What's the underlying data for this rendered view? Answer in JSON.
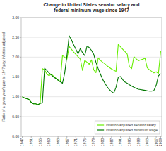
{
  "chart_data": {
    "type": "line",
    "title": "Change in United States senator salary and\nfederal minimum wage since 1947",
    "y_label": "Ratio of a given year's pay to 1947 pay, inflation-adjusted",
    "x": [
      1947,
      1948,
      1949,
      1950,
      1951,
      1952,
      1953,
      1954,
      1955,
      1956,
      1957,
      1958,
      1959,
      1960,
      1961,
      1962,
      1963,
      1964,
      1965,
      1966,
      1967,
      1968,
      1969,
      1970,
      1971,
      1972,
      1973,
      1974,
      1975,
      1976,
      1977,
      1978,
      1979,
      1980,
      1981,
      1982,
      1983,
      1984,
      1985,
      1986,
      1987,
      1988,
      1989,
      1990,
      1991,
      1992,
      1993,
      1994,
      1995,
      1996,
      1997,
      1998,
      1999,
      2000,
      2001,
      2002,
      2003,
      2004,
      2005,
      2006,
      2007,
      2008,
      2009
    ],
    "series": [
      {
        "name": "inflation-adjusted senator salary",
        "color": "#66ee00",
        "values": [
          1.0,
          0.97,
          0.95,
          0.93,
          0.86,
          0.82,
          0.82,
          0.8,
          0.83,
          1.71,
          1.68,
          1.57,
          1.53,
          1.57,
          1.52,
          1.47,
          1.42,
          1.38,
          2.04,
          2.0,
          1.95,
          2.27,
          2.2,
          2.13,
          2.07,
          2.01,
          1.95,
          1.66,
          1.92,
          1.87,
          1.82,
          1.93,
          1.68,
          1.61,
          1.98,
          1.92,
          1.87,
          1.83,
          1.78,
          1.74,
          1.7,
          1.67,
          1.64,
          2.32,
          2.26,
          2.2,
          2.14,
          2.08,
          1.76,
          1.71,
          2.01,
          1.96,
          1.91,
          1.93,
          1.95,
          1.97,
          1.73,
          1.68,
          1.64,
          1.6,
          1.63,
          1.59,
          2.15
        ]
      },
      {
        "name": "inflation-adjusted minimum wage",
        "color": "#007700",
        "values": [
          1.0,
          0.97,
          0.95,
          0.93,
          0.86,
          0.82,
          0.82,
          0.8,
          0.83,
          0.85,
          1.72,
          1.66,
          1.6,
          1.55,
          1.5,
          1.46,
          1.42,
          1.38,
          1.34,
          1.6,
          2.04,
          2.54,
          2.44,
          2.31,
          2.2,
          2.08,
          2.22,
          2.11,
          2.04,
          2.28,
          2.24,
          2.17,
          2.07,
          1.87,
          1.71,
          1.57,
          1.44,
          1.34,
          1.25,
          1.18,
          1.13,
          1.09,
          1.24,
          1.49,
          1.51,
          1.43,
          1.37,
          1.34,
          1.3,
          1.27,
          1.24,
          1.21,
          1.19,
          1.18,
          1.17,
          1.16,
          1.15,
          1.14,
          1.14,
          1.16,
          1.29,
          1.53,
          1.58
        ]
      }
    ],
    "xlim": [
      1946.5,
      2009.5
    ],
    "xticks": [
      1947,
      1951,
      1955,
      1959,
      1963,
      1967,
      1971,
      1975,
      1979,
      1983,
      1987,
      1991,
      1995,
      1999,
      2003,
      2007,
      2009
    ],
    "ylim": [
      0,
      3
    ],
    "yticks": [
      {
        "value": 0,
        "label": "0.00"
      },
      {
        "value": 0.5,
        "label": "0.50"
      },
      {
        "value": 1,
        "label": "1.00"
      },
      {
        "value": 1.5,
        "label": "1.50"
      },
      {
        "value": 2,
        "label": "2.00"
      },
      {
        "value": 2.5,
        "label": "2.50"
      },
      {
        "value": 3,
        "label": "3.00"
      }
    ],
    "grid": true,
    "legend": "lower right"
  }
}
